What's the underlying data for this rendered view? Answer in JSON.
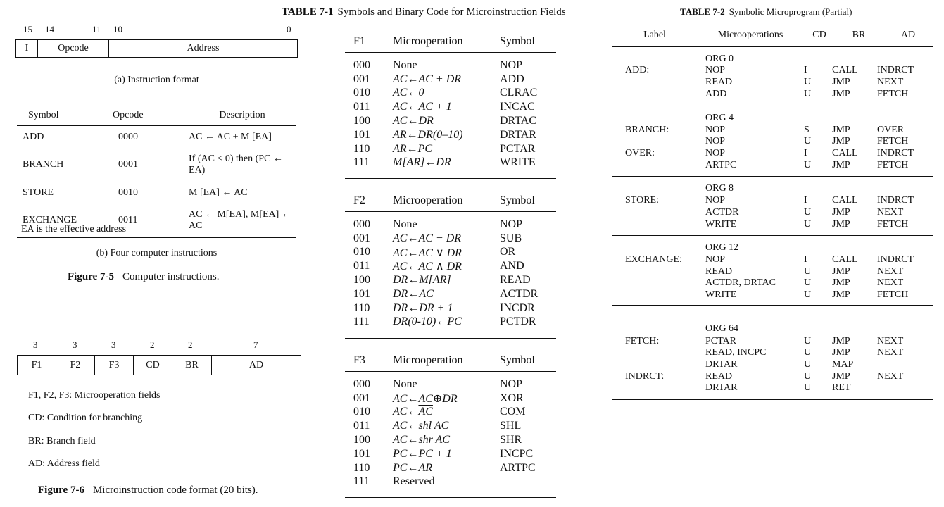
{
  "figure_7_5": {
    "bit_numbers": [
      "15",
      "14",
      "11",
      "10",
      "0"
    ],
    "fields": [
      "I",
      "Opcode",
      "Address"
    ],
    "caption_a": "(a) Instruction format",
    "columns": [
      "Symbol",
      "Opcode",
      "Description"
    ],
    "instructions": [
      {
        "symbol": "ADD",
        "opcode": "0000",
        "description": "AC ← AC + M [EA]"
      },
      {
        "symbol": "BRANCH",
        "opcode": "0001",
        "description": "If (AC < 0) then (PC ← EA)"
      },
      {
        "symbol": "STORE",
        "opcode": "0010",
        "description": "M [EA] ← AC"
      },
      {
        "symbol": "EXCHANGE",
        "opcode": "0011",
        "description": "AC ← M[EA], M[EA] ← AC"
      }
    ],
    "note": "EA is the effective address",
    "caption_b": "(b) Four computer instructions",
    "figure_label": "Figure 7-5",
    "figure_title": "Computer instructions."
  },
  "table_7_1": {
    "label": "TABLE 7-1",
    "title": "Symbols and Binary Code for Microinstruction Fields",
    "col_microoperation": "Microoperation",
    "col_symbol": "Symbol",
    "groups": [
      {
        "field": "F1",
        "rows": [
          {
            "code": "000",
            "op": "None",
            "symbol": "NOP"
          },
          {
            "code": "001",
            "op": "AC←AC + DR",
            "symbol": "ADD"
          },
          {
            "code": "010",
            "op": "AC←0",
            "symbol": "CLRAC"
          },
          {
            "code": "011",
            "op": "AC←AC + 1",
            "symbol": "INCAC"
          },
          {
            "code": "100",
            "op": "AC←DR",
            "symbol": "DRTAC"
          },
          {
            "code": "101",
            "op": "AR←DR(0–10)",
            "symbol": "DRTAR"
          },
          {
            "code": "110",
            "op": "AR←PC",
            "symbol": "PCTAR"
          },
          {
            "code": "111",
            "op": "M[AR]←DR",
            "symbol": "WRITE"
          }
        ]
      },
      {
        "field": "F2",
        "rows": [
          {
            "code": "000",
            "op": "None",
            "symbol": "NOP"
          },
          {
            "code": "001",
            "op": "AC←AC − DR",
            "symbol": "SUB"
          },
          {
            "code": "010",
            "op": "AC←AC ∨ DR",
            "symbol": "OR"
          },
          {
            "code": "011",
            "op": "AC←AC ∧ DR",
            "symbol": "AND"
          },
          {
            "code": "100",
            "op": "DR←M[AR]",
            "symbol": "READ"
          },
          {
            "code": "101",
            "op": "DR←AC",
            "symbol": "ACTDR"
          },
          {
            "code": "110",
            "op": "DR←DR + 1",
            "symbol": "INCDR"
          },
          {
            "code": "111",
            "op": "DR(0-10)←PC",
            "symbol": "PCTDR"
          }
        ]
      },
      {
        "field": "F3",
        "rows": [
          {
            "code": "000",
            "op": "None",
            "symbol": "NOP"
          },
          {
            "code": "001",
            "op": "AC←AC⊕DR",
            "symbol": "XOR"
          },
          {
            "code": "010",
            "op": "AC←AC",
            "symbol": "COM"
          },
          {
            "code": "011",
            "op": "AC←shl AC",
            "symbol": "SHL"
          },
          {
            "code": "100",
            "op": "AC←shr AC",
            "symbol": "SHR"
          },
          {
            "code": "101",
            "op": "PC←PC + 1",
            "symbol": "INCPC"
          },
          {
            "code": "110",
            "op": "PC←AR",
            "symbol": "ARTPC"
          },
          {
            "code": "111",
            "op": "Reserved",
            "symbol": ""
          }
        ]
      }
    ]
  },
  "figure_7_6": {
    "widths": [
      "3",
      "3",
      "3",
      "2",
      "2",
      "7"
    ],
    "fields": [
      "F1",
      "F2",
      "F3",
      "CD",
      "BR",
      "AD"
    ],
    "legend": [
      "F1, F2, F3: Microoperation fields",
      "CD: Condition for branching",
      "BR: Branch field",
      "AD: Address field"
    ],
    "figure_label": "Figure 7-6",
    "figure_title": "Microinstruction code format (20 bits)."
  },
  "table_7_2": {
    "label": "TABLE 7-2",
    "title": "Symbolic Microprogram (Partial)",
    "columns": [
      "Label",
      "Microoperations",
      "CD",
      "BR",
      "AD"
    ],
    "rows": [
      {
        "label": "",
        "micro": "ORG 0",
        "cd": "",
        "br": "",
        "ad": ""
      },
      {
        "label": "ADD:",
        "micro": "NOP",
        "cd": "I",
        "br": "CALL",
        "ad": "INDRCT"
      },
      {
        "label": "",
        "micro": "READ",
        "cd": "U",
        "br": "JMP",
        "ad": "NEXT"
      },
      {
        "label": "",
        "micro": "ADD",
        "cd": "U",
        "br": "JMP",
        "ad": "FETCH"
      },
      {
        "label": "",
        "micro": "ORG 4",
        "cd": "",
        "br": "",
        "ad": ""
      },
      {
        "label": "BRANCH:",
        "micro": "NOP",
        "cd": "S",
        "br": "JMP",
        "ad": "OVER"
      },
      {
        "label": "",
        "micro": "NOP",
        "cd": "U",
        "br": "JMP",
        "ad": "FETCH"
      },
      {
        "label": "OVER:",
        "micro": "NOP",
        "cd": "I",
        "br": "CALL",
        "ad": "INDRCT"
      },
      {
        "label": "",
        "micro": "ARTPC",
        "cd": "U",
        "br": "JMP",
        "ad": "FETCH"
      },
      {
        "label": "",
        "micro": "ORG 8",
        "cd": "",
        "br": "",
        "ad": ""
      },
      {
        "label": "STORE:",
        "micro": "NOP",
        "cd": "I",
        "br": "CALL",
        "ad": "INDRCT"
      },
      {
        "label": "",
        "micro": "ACTDR",
        "cd": "U",
        "br": "JMP",
        "ad": "NEXT"
      },
      {
        "label": "",
        "micro": "WRITE",
        "cd": "U",
        "br": "JMP",
        "ad": "FETCH"
      },
      {
        "label": "",
        "micro": "ORG 12",
        "cd": "",
        "br": "",
        "ad": ""
      },
      {
        "label": "EXCHANGE:",
        "micro": "NOP",
        "cd": "I",
        "br": "CALL",
        "ad": "INDRCT"
      },
      {
        "label": "",
        "micro": "READ",
        "cd": "U",
        "br": "JMP",
        "ad": "NEXT"
      },
      {
        "label": "",
        "micro": "ACTDR, DRTAC",
        "cd": "U",
        "br": "JMP",
        "ad": "NEXT"
      },
      {
        "label": "",
        "micro": "WRITE",
        "cd": "U",
        "br": "JMP",
        "ad": "FETCH"
      },
      {
        "label": "",
        "micro": "ORG 64",
        "cd": "",
        "br": "",
        "ad": ""
      },
      {
        "label": "FETCH:",
        "micro": "PCTAR",
        "cd": "U",
        "br": "JMP",
        "ad": "NEXT"
      },
      {
        "label": "",
        "micro": "READ, INCPC",
        "cd": "U",
        "br": "JMP",
        "ad": "NEXT"
      },
      {
        "label": "",
        "micro": "DRTAR",
        "cd": "U",
        "br": "MAP",
        "ad": ""
      },
      {
        "label": "INDRCT:",
        "micro": "READ",
        "cd": "U",
        "br": "JMP",
        "ad": "NEXT"
      },
      {
        "label": "",
        "micro": "DRTAR",
        "cd": "U",
        "br": "RET",
        "ad": ""
      }
    ]
  }
}
